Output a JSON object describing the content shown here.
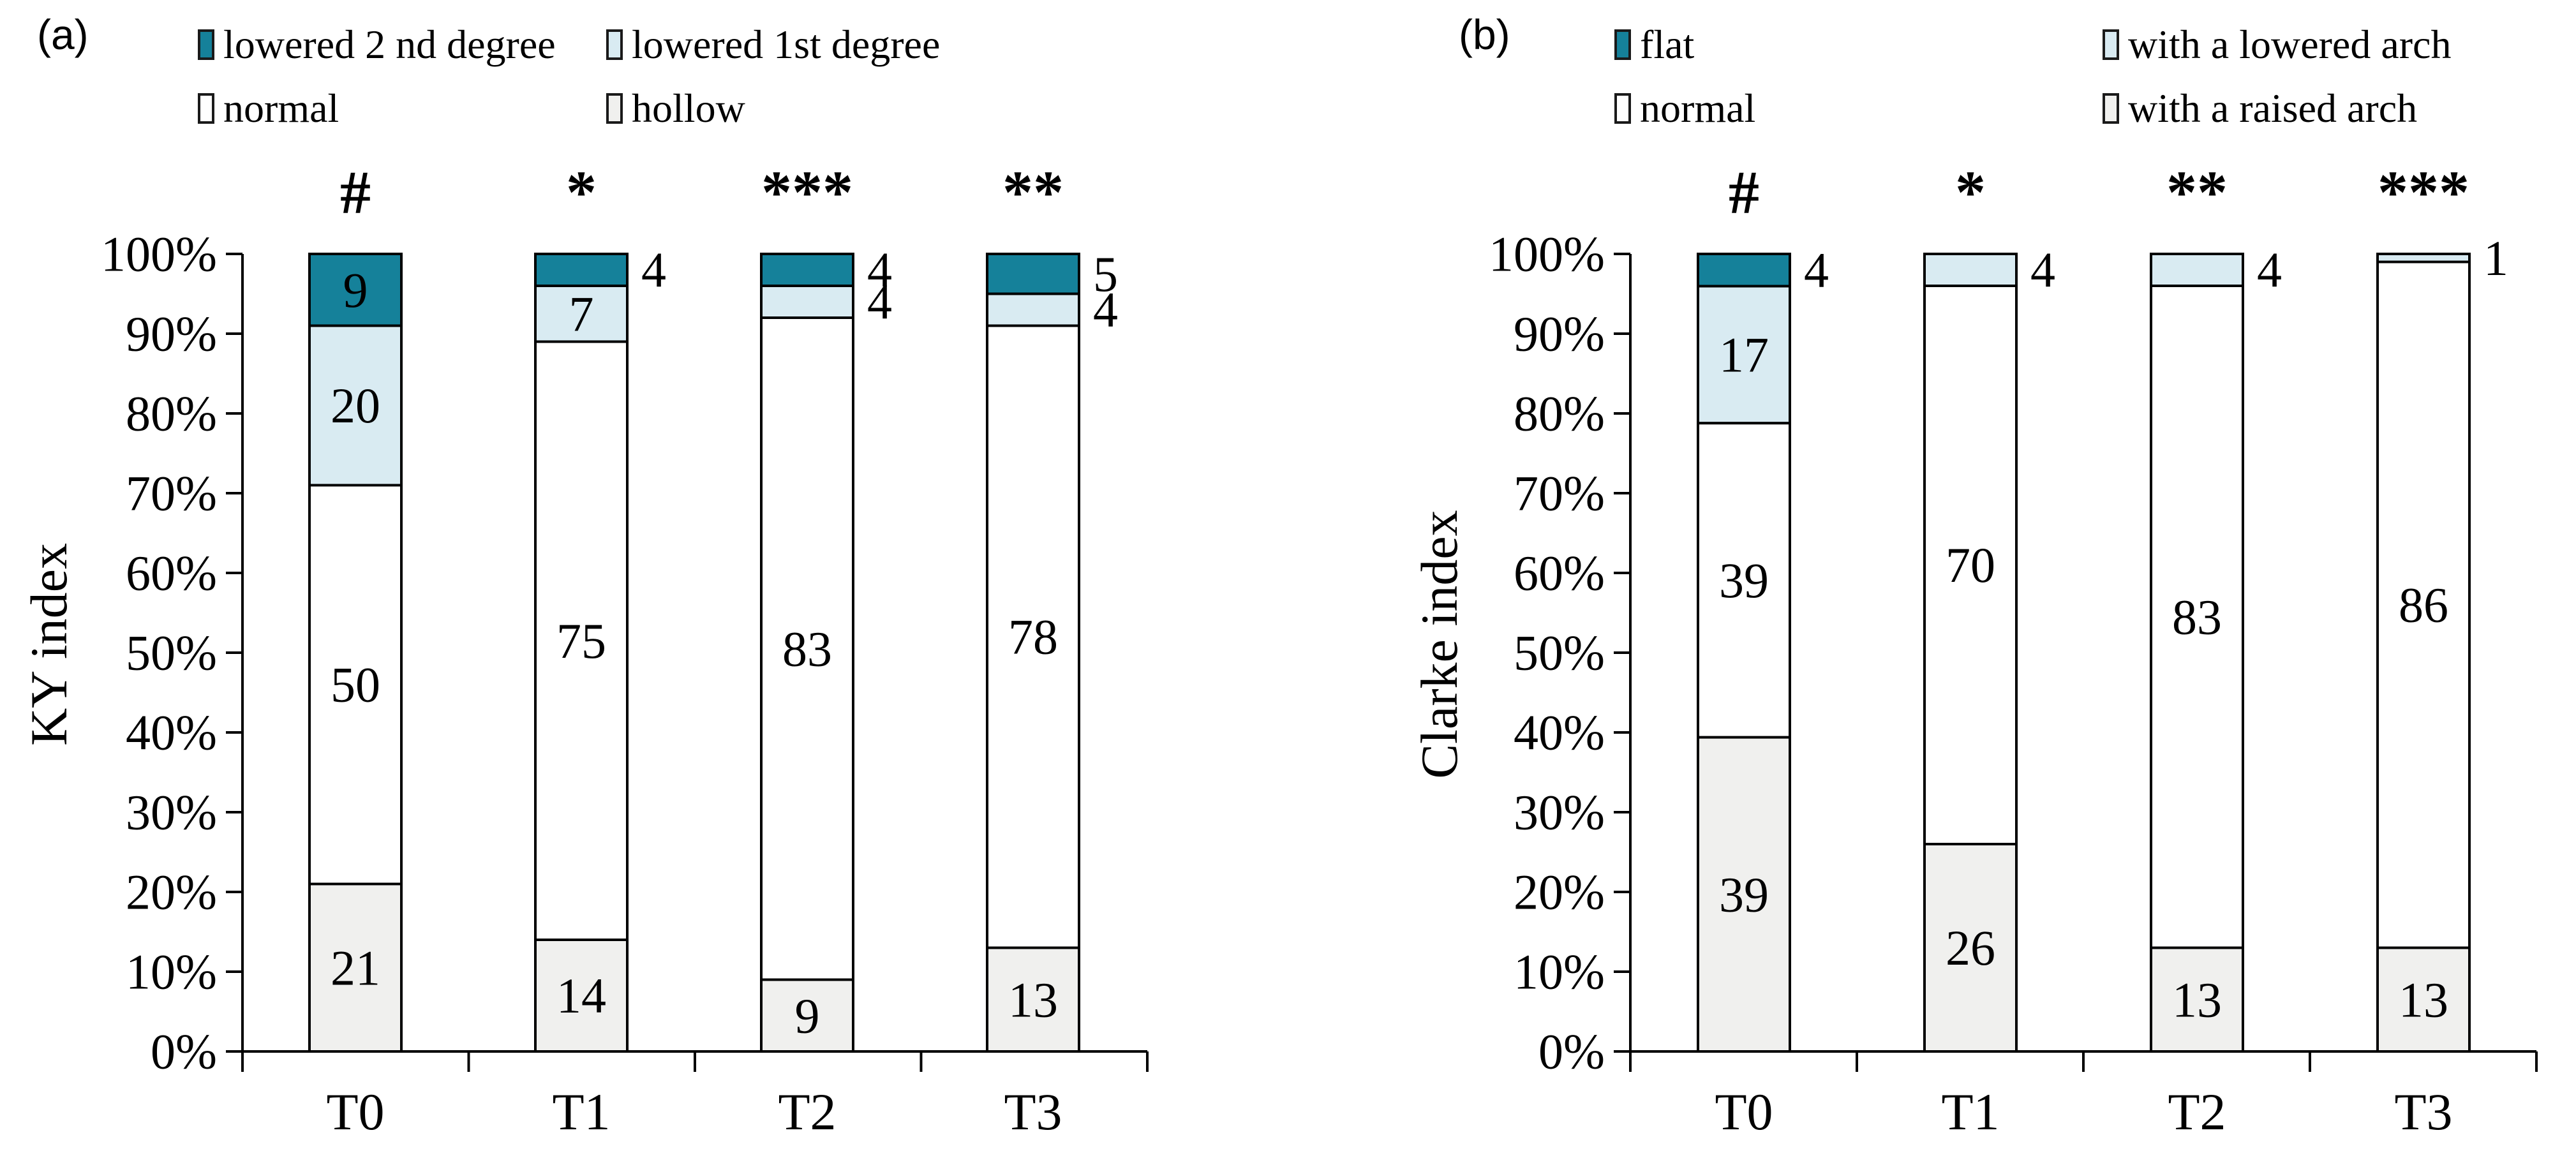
{
  "figure_type": "two stacked 100% bar charts",
  "colors": {
    "teal": "#15819a",
    "light_blue": "#d9ebf2",
    "white": "#ffffff",
    "light_gray": "#f0f0ee",
    "stroke": "#000000"
  },
  "chart_data": [
    {
      "type": "bar",
      "stacked": true,
      "panel_label": "(a)",
      "y_axis": {
        "label": "KY index",
        "tick_labels": [
          "0%",
          "10%",
          "20%",
          "30%",
          "40%",
          "50%",
          "60%",
          "70%",
          "80%",
          "90%",
          "100%"
        ],
        "range": [
          0,
          100
        ],
        "grid": false
      },
      "categories": [
        "T0",
        "T1",
        "T2",
        "T3"
      ],
      "annotations": [
        "#",
        "*",
        "***",
        "**"
      ],
      "legend": [
        {
          "label": "lowered 2 nd degree",
          "color": "teal"
        },
        {
          "label": "lowered 1st degree",
          "color": "light_blue"
        },
        {
          "label": "normal",
          "color": "white"
        },
        {
          "label": "hollow",
          "color": "light_gray"
        }
      ],
      "series": [
        {
          "name": "hollow",
          "color": "light_gray",
          "values": [
            21,
            14,
            9,
            13
          ],
          "label_outside": [
            false,
            false,
            false,
            false
          ]
        },
        {
          "name": "normal",
          "color": "white",
          "values": [
            50,
            75,
            83,
            78
          ],
          "label_outside": [
            false,
            false,
            false,
            false
          ]
        },
        {
          "name": "lowered 1st degree",
          "color": "light_blue",
          "values": [
            20,
            7,
            4,
            4
          ],
          "label_outside": [
            false,
            false,
            true,
            true
          ]
        },
        {
          "name": "lowered 2 nd degree",
          "color": "teal",
          "values": [
            9,
            4,
            4,
            5
          ],
          "label_outside": [
            false,
            true,
            true,
            true
          ]
        }
      ]
    },
    {
      "type": "bar",
      "stacked": true,
      "panel_label": "(b)",
      "y_axis": {
        "label": "Clarke index",
        "tick_labels": [
          "0%",
          "10%",
          "20%",
          "30%",
          "40%",
          "50%",
          "60%",
          "70%",
          "80%",
          "90%",
          "100%"
        ],
        "range": [
          0,
          100
        ],
        "grid": false
      },
      "categories": [
        "T0",
        "T1",
        "T2",
        "T3"
      ],
      "annotations": [
        "#",
        "*",
        "**",
        "***"
      ],
      "legend": [
        {
          "label": "flat",
          "color": "teal"
        },
        {
          "label": "with a lowered arch",
          "color": "light_blue"
        },
        {
          "label": "normal",
          "color": "white"
        },
        {
          "label": "with a raised arch",
          "color": "light_gray"
        }
      ],
      "series": [
        {
          "name": "with a raised arch",
          "color": "light_gray",
          "values": [
            39,
            26,
            13,
            13
          ],
          "label_outside": [
            false,
            false,
            false,
            false
          ]
        },
        {
          "name": "normal",
          "color": "white",
          "values": [
            39,
            70,
            83,
            86
          ],
          "label_outside": [
            false,
            false,
            false,
            false
          ]
        },
        {
          "name": "with a lowered arch",
          "color": "light_blue",
          "values": [
            17,
            4,
            4,
            1
          ],
          "label_outside": [
            false,
            true,
            true,
            true
          ]
        },
        {
          "name": "flat",
          "color": "teal",
          "values": [
            4,
            0,
            0,
            0
          ],
          "label_outside": [
            true,
            false,
            false,
            false
          ]
        }
      ]
    }
  ]
}
